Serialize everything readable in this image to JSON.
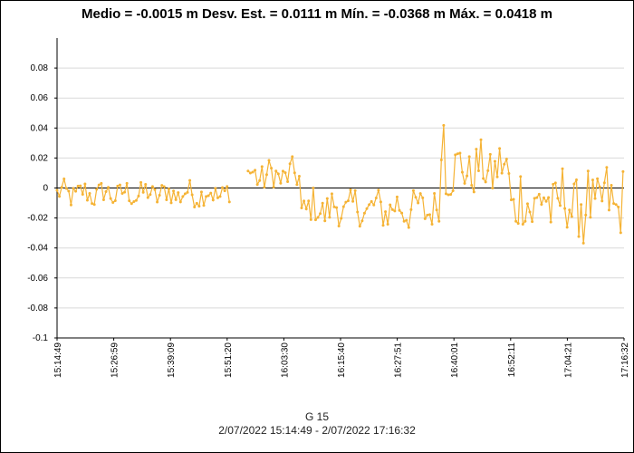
{
  "chart_data": {
    "type": "line",
    "title": "Medio = -0.0015 m  Desv. Est. = 0.0111 m  Mín. = -0.0368 m  Máx. = 0.0418 m",
    "xlabel": "G 15",
    "xrange_label": "2/07/2022 15:14:49 - 2/07/2022 17:16:32",
    "ylabel": "",
    "ylim": [
      -0.1,
      0.1
    ],
    "yticks": [
      -0.1,
      -0.08,
      -0.06,
      -0.04,
      -0.02,
      0,
      0.02,
      0.04,
      0.06,
      0.08
    ],
    "ytick_labels": [
      "-0.1",
      "-0.08",
      "-0.06",
      "-0.04",
      "-0.02",
      "0",
      "0.02",
      "0.04",
      "0.06",
      "0.08"
    ],
    "xlim_seconds": [
      0,
      7303
    ],
    "xtick_labels": [
      "15:14:49",
      "15:26:59",
      "15:39:09",
      "15:51:20",
      "16:03:30",
      "16:15:40",
      "16:27:51",
      "16:40:01",
      "16:52:11",
      "17:04:21",
      "17:16:32"
    ],
    "grid": true,
    "zero_line": true,
    "series": [
      {
        "name": "G 15",
        "color": "#f5b335",
        "x_step_seconds": 30,
        "gap": [
          75,
          82
        ],
        "segments": [
          {
            "from": 0,
            "to": 75,
            "center": -0.004,
            "spread": 0.008
          },
          {
            "from": 82,
            "to": 105,
            "center": 0.008,
            "spread": 0.01
          },
          {
            "from": 105,
            "to": 165,
            "center": -0.014,
            "spread": 0.012
          },
          {
            "from": 165,
            "to": 195,
            "center": 0.012,
            "spread": 0.016
          },
          {
            "from": 195,
            "to": 244,
            "center": -0.01,
            "spread": 0.022
          }
        ],
        "max_point": {
          "x": 166,
          "y": 0.0418
        },
        "min_point": {
          "x": 226,
          "y": -0.0368
        }
      }
    ],
    "stats": {
      "mean": -0.0015,
      "std": 0.0111,
      "min": -0.0368,
      "max": 0.0418,
      "unit": "m"
    }
  }
}
